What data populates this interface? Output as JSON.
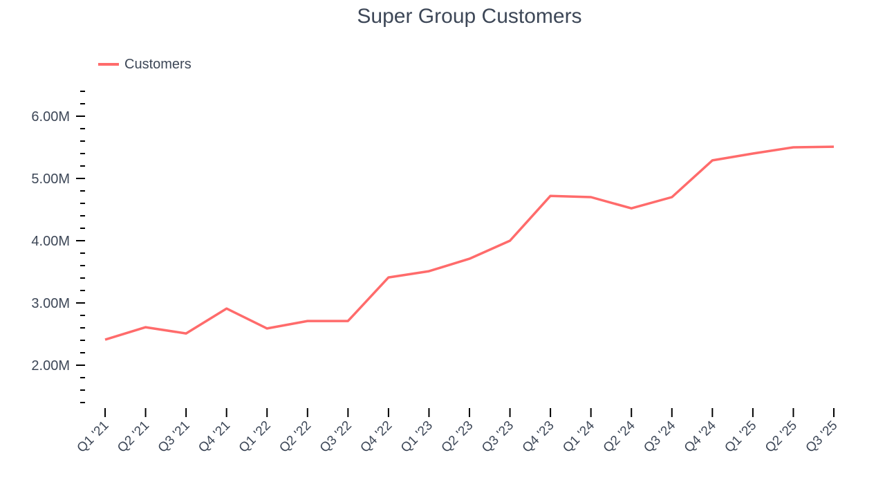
{
  "chart_data": {
    "type": "line",
    "title": "Super Group Customers",
    "xlabel": "",
    "ylabel": "",
    "categories": [
      "Q1 '21",
      "Q2 '21",
      "Q3 '21",
      "Q4 '21",
      "Q1 '22",
      "Q2 '22",
      "Q3 '22",
      "Q4 '22",
      "Q1 '23",
      "Q2 '23",
      "Q3 '23",
      "Q4 '23",
      "Q1 '24",
      "Q2 '24",
      "Q3 '24",
      "Q4 '24",
      "Q1 '25",
      "Q2 '25",
      "Q3 '25"
    ],
    "series": [
      {
        "name": "Customers",
        "color": "#ff6b6b",
        "values": [
          2410000,
          2610000,
          2510000,
          2910000,
          2590000,
          2710000,
          2710000,
          3410000,
          3510000,
          3710000,
          4000000,
          4720000,
          4700000,
          4520000,
          4700000,
          5290000,
          5400000,
          5500000,
          5510000
        ]
      }
    ],
    "yticks": [
      2000000,
      3000000,
      4000000,
      5000000,
      6000000
    ],
    "ytick_labels": [
      "2.00M",
      "3.00M",
      "4.00M",
      "5.00M",
      "6.00M"
    ],
    "ylim": [
      1300000,
      6500000
    ],
    "minor_tick_step": 200000,
    "grid": false,
    "legend_position": "top-left"
  }
}
